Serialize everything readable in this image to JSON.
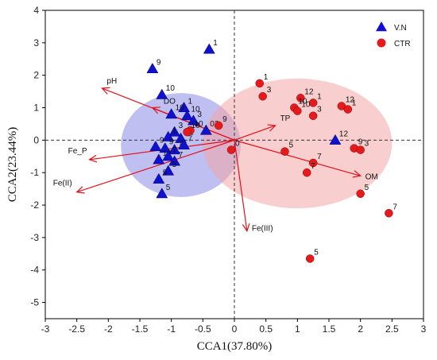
{
  "chart_data": {
    "type": "scatter",
    "xlabel": "CCA1(37.80%)",
    "ylabel": "CCA2(23.44%)",
    "xlim": [
      -3,
      3
    ],
    "ylim": [
      -5.5,
      4
    ],
    "xticks": [
      -3,
      -2.5,
      -2,
      -1.5,
      -1,
      -0.5,
      0,
      0.5,
      1,
      1.5,
      2,
      2.5,
      3
    ],
    "yticks": [
      4,
      3,
      2,
      1,
      0,
      -1,
      -2,
      -3,
      -4,
      -5
    ],
    "tick_labels_x": [
      "-3",
      "-2.5",
      "-2",
      "-1.5",
      "-1",
      "-0.5",
      "0",
      "0.5",
      "1",
      "1.5",
      "2",
      "2.5",
      "3"
    ],
    "tick_labels_y": [
      "4",
      "3",
      "2",
      "1",
      "0",
      "-1",
      "-2",
      "-3",
      "-4",
      "-5"
    ],
    "grid": false,
    "zero_lines": "dashed",
    "legend_position": "top-right",
    "series": [
      {
        "name": "V.N",
        "marker": "triangle",
        "color": "#1010d0",
        "ellipse_color": "#8a8ae8",
        "points": [
          {
            "x": -0.4,
            "y": 2.8,
            "label": "1"
          },
          {
            "x": -1.3,
            "y": 2.2,
            "label": "9"
          },
          {
            "x": -1.15,
            "y": 1.4,
            "label": "10"
          },
          {
            "x": -0.8,
            "y": 1.0,
            "label": "1"
          },
          {
            "x": -1.0,
            "y": 0.8,
            "label": "10"
          },
          {
            "x": -0.75,
            "y": 0.75,
            "label": "10"
          },
          {
            "x": -0.65,
            "y": 0.6,
            "label": "3"
          },
          {
            "x": -0.45,
            "y": 0.3,
            "label": "03"
          },
          {
            "x": -0.95,
            "y": 0.25,
            "label": "3"
          },
          {
            "x": -1.05,
            "y": 0.1,
            "label": "1"
          },
          {
            "x": -0.85,
            "y": 0.05,
            "label": "12"
          },
          {
            "x": -1.25,
            "y": -0.2,
            "label": "9"
          },
          {
            "x": -1.1,
            "y": -0.25,
            "label": "9"
          },
          {
            "x": -0.95,
            "y": -0.3,
            "label": "7"
          },
          {
            "x": -0.8,
            "y": -0.15,
            "label": "7"
          },
          {
            "x": -1.2,
            "y": -0.6,
            "label": "12"
          },
          {
            "x": -1.05,
            "y": -0.5,
            "label": "7"
          },
          {
            "x": -0.95,
            "y": -0.65,
            "label": "7"
          },
          {
            "x": -1.05,
            "y": -0.95,
            "label": "5"
          },
          {
            "x": -1.2,
            "y": -1.2,
            "label": "5"
          },
          {
            "x": -1.15,
            "y": -1.65,
            "label": "5"
          },
          {
            "x": 1.6,
            "y": 0.0,
            "label": "12"
          }
        ]
      },
      {
        "name": "CTR",
        "marker": "circle",
        "color": "#e41a1c",
        "ellipse_color": "#f4a6a6",
        "points": [
          {
            "x": 0.4,
            "y": 1.75,
            "label": "1"
          },
          {
            "x": 0.45,
            "y": 1.35,
            "label": "3"
          },
          {
            "x": 1.05,
            "y": 1.3,
            "label": "12"
          },
          {
            "x": 1.25,
            "y": 1.15,
            "label": "1"
          },
          {
            "x": 0.95,
            "y": 1.0,
            "label": "10"
          },
          {
            "x": 1.0,
            "y": 0.9,
            "label": "10"
          },
          {
            "x": 1.25,
            "y": 0.75,
            "label": "3"
          },
          {
            "x": 1.7,
            "y": 1.05,
            "label": "12"
          },
          {
            "x": 1.8,
            "y": 0.95,
            "label": "1"
          },
          {
            "x": -0.25,
            "y": 0.45,
            "label": "9"
          },
          {
            "x": -0.7,
            "y": 0.3,
            "label": "10"
          },
          {
            "x": -0.75,
            "y": 0.25,
            "label": "10"
          },
          {
            "x": -0.05,
            "y": -0.3,
            "label": "0"
          },
          {
            "x": 0.8,
            "y": -0.35,
            "label": "5"
          },
          {
            "x": 1.9,
            "y": -0.25,
            "label": "9"
          },
          {
            "x": 2.0,
            "y": -0.3,
            "label": "3"
          },
          {
            "x": 1.25,
            "y": -0.7,
            "label": "7"
          },
          {
            "x": 1.15,
            "y": -1.0,
            "label": "7"
          },
          {
            "x": 2.0,
            "y": -1.65,
            "label": "5"
          },
          {
            "x": 2.45,
            "y": -2.25,
            "label": "7"
          },
          {
            "x": 1.2,
            "y": -3.65,
            "label": "5"
          }
        ]
      }
    ],
    "vectors": [
      {
        "name": "pH",
        "x": -2.1,
        "y": 1.6
      },
      {
        "name": "DO",
        "x": -1.3,
        "y": 1.0
      },
      {
        "name": "TP",
        "x": 0.65,
        "y": 0.45
      },
      {
        "name": "Fe_P",
        "x": -2.3,
        "y": -0.6
      },
      {
        "name": "Fe(II)",
        "x": -2.5,
        "y": -1.6
      },
      {
        "name": "OM",
        "x": 2.0,
        "y": -1.1
      },
      {
        "name": "Fe(III)",
        "x": 0.2,
        "y": -2.8
      }
    ],
    "ellipses": [
      {
        "series": "V.N",
        "cx": -0.85,
        "cy": -0.15,
        "rx": 0.95,
        "ry": 1.6
      },
      {
        "series": "CTR",
        "cx": 1.0,
        "cy": -0.1,
        "rx": 1.5,
        "ry": 2.0
      }
    ]
  }
}
